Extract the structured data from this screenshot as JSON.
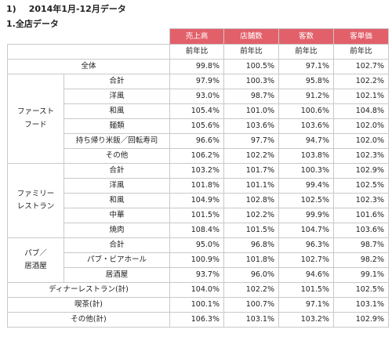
{
  "heading": {
    "number": "1)",
    "title": "2014年1月-12月データ"
  },
  "subheading": "1.全店データ",
  "table": {
    "columns": [
      "売上高",
      "店舗数",
      "客数",
      "客単価"
    ],
    "subheader": [
      "前年比",
      "前年比",
      "前年比",
      "前年比"
    ],
    "overall": {
      "label": "全体",
      "values": [
        "99.8%",
        "100.5%",
        "97.1%",
        "102.7%"
      ]
    },
    "groups": [
      {
        "category_lines": [
          "ファースト",
          "フード"
        ],
        "rows": [
          {
            "label": "合計",
            "values": [
              "97.9%",
              "100.3%",
              "95.8%",
              "102.2%"
            ]
          },
          {
            "label": "洋風",
            "values": [
              "93.0%",
              "98.7%",
              "91.2%",
              "102.1%"
            ]
          },
          {
            "label": "和風",
            "values": [
              "105.4%",
              "101.0%",
              "100.6%",
              "104.8%"
            ]
          },
          {
            "label": "麺類",
            "values": [
              "105.6%",
              "103.6%",
              "103.6%",
              "102.0%"
            ]
          },
          {
            "label": "持ち帰り米飯／回転寿司",
            "values": [
              "96.6%",
              "97.7%",
              "94.7%",
              "102.0%"
            ]
          },
          {
            "label": "その他",
            "values": [
              "106.2%",
              "102.2%",
              "103.8%",
              "102.3%"
            ]
          }
        ]
      },
      {
        "category_lines": [
          "ファミリー",
          "レストラン"
        ],
        "rows": [
          {
            "label": "合計",
            "values": [
              "103.2%",
              "101.7%",
              "100.3%",
              "102.9%"
            ]
          },
          {
            "label": "洋風",
            "values": [
              "101.8%",
              "101.1%",
              "99.4%",
              "102.5%"
            ]
          },
          {
            "label": "和風",
            "values": [
              "104.9%",
              "102.8%",
              "102.5%",
              "102.3%"
            ]
          },
          {
            "label": "中華",
            "values": [
              "101.5%",
              "102.2%",
              "99.9%",
              "101.6%"
            ]
          },
          {
            "label": "焼肉",
            "values": [
              "108.4%",
              "101.5%",
              "104.7%",
              "103.6%"
            ]
          }
        ]
      },
      {
        "category_lines": [
          "パブ／",
          "居酒屋"
        ],
        "rows": [
          {
            "label": "合計",
            "values": [
              "95.0%",
              "96.8%",
              "96.3%",
              "98.7%"
            ]
          },
          {
            "label": "パブ・ビアホール",
            "values": [
              "100.9%",
              "101.8%",
              "102.7%",
              "98.2%"
            ]
          },
          {
            "label": "居酒屋",
            "values": [
              "93.7%",
              "96.0%",
              "94.6%",
              "99.1%"
            ]
          }
        ]
      }
    ],
    "totals": [
      {
        "label": "ディナーレストラン(計)",
        "values": [
          "104.0%",
          "102.2%",
          "101.5%",
          "102.5%"
        ]
      },
      {
        "label": "喫茶(計)",
        "values": [
          "100.1%",
          "100.7%",
          "97.1%",
          "103.1%"
        ]
      },
      {
        "label": "その他(計)",
        "values": [
          "106.3%",
          "103.1%",
          "103.2%",
          "102.9%"
        ]
      }
    ]
  }
}
